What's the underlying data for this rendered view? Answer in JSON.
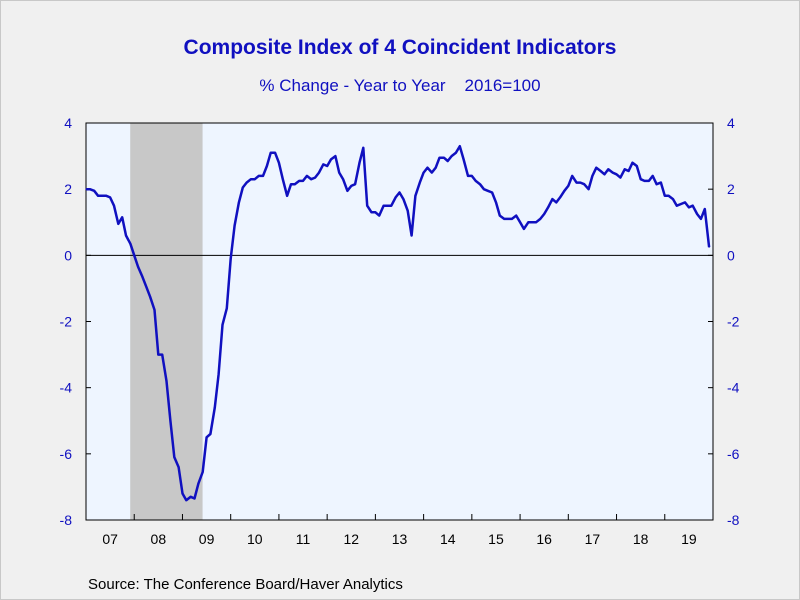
{
  "chart_data": {
    "type": "line",
    "title": "Composite Index of 4 Coincident Indicators",
    "subtitle": "% Change - Year to Year    2016=100",
    "source": "Source:  The Conference Board/Haver Analytics",
    "x_start_year": 2007,
    "x_end_year": 2020,
    "x_tick_labels": [
      "07",
      "08",
      "09",
      "10",
      "11",
      "12",
      "13",
      "14",
      "15",
      "16",
      "17",
      "18",
      "19"
    ],
    "ylim": [
      -8,
      4
    ],
    "y_ticks": [
      4,
      2,
      0,
      -2,
      -4,
      -6,
      -8
    ],
    "y_tick_labels": [
      "4",
      "2",
      "0",
      "-2",
      "-4",
      "-6",
      "-8"
    ],
    "zero_line": true,
    "shaded_periods": [
      {
        "start": 2007.917,
        "end": 2009.417
      }
    ],
    "colors": {
      "line": "#1010c0",
      "axis_text": "#1010c0",
      "plot_background": "#eef5ff",
      "recession_shade": "#c8c8c8",
      "page_background": "#f0f0f0"
    },
    "series": [
      {
        "values": [
          [
            2007.0,
            2.0
          ],
          [
            2007.08,
            2.0
          ],
          [
            2007.17,
            1.95
          ],
          [
            2007.25,
            1.8
          ],
          [
            2007.33,
            1.8
          ],
          [
            2007.42,
            1.8
          ],
          [
            2007.5,
            1.75
          ],
          [
            2007.58,
            1.5
          ],
          [
            2007.67,
            0.95
          ],
          [
            2007.75,
            1.15
          ],
          [
            2007.83,
            0.6
          ],
          [
            2007.92,
            0.35
          ],
          [
            2008.0,
            0.0
          ],
          [
            2008.08,
            -0.35
          ],
          [
            2008.17,
            -0.65
          ],
          [
            2008.25,
            -0.95
          ],
          [
            2008.33,
            -1.25
          ],
          [
            2008.42,
            -1.65
          ],
          [
            2008.5,
            -3.0
          ],
          [
            2008.58,
            -3.0
          ],
          [
            2008.67,
            -3.8
          ],
          [
            2008.75,
            -5.0
          ],
          [
            2008.83,
            -6.1
          ],
          [
            2008.92,
            -6.4
          ],
          [
            2009.0,
            -7.2
          ],
          [
            2009.08,
            -7.4
          ],
          [
            2009.17,
            -7.3
          ],
          [
            2009.25,
            -7.35
          ],
          [
            2009.33,
            -6.9
          ],
          [
            2009.42,
            -6.55
          ],
          [
            2009.5,
            -5.5
          ],
          [
            2009.58,
            -5.4
          ],
          [
            2009.67,
            -4.6
          ],
          [
            2009.75,
            -3.6
          ],
          [
            2009.83,
            -2.1
          ],
          [
            2009.92,
            -1.6
          ],
          [
            2010.0,
            -0.1
          ],
          [
            2010.08,
            0.9
          ],
          [
            2010.17,
            1.6
          ],
          [
            2010.25,
            2.05
          ],
          [
            2010.33,
            2.2
          ],
          [
            2010.42,
            2.3
          ],
          [
            2010.5,
            2.3
          ],
          [
            2010.58,
            2.4
          ],
          [
            2010.67,
            2.4
          ],
          [
            2010.75,
            2.7
          ],
          [
            2010.83,
            3.1
          ],
          [
            2010.92,
            3.1
          ],
          [
            2011.0,
            2.8
          ],
          [
            2011.08,
            2.3
          ],
          [
            2011.17,
            1.8
          ],
          [
            2011.25,
            2.15
          ],
          [
            2011.33,
            2.15
          ],
          [
            2011.42,
            2.25
          ],
          [
            2011.5,
            2.25
          ],
          [
            2011.58,
            2.4
          ],
          [
            2011.67,
            2.3
          ],
          [
            2011.75,
            2.35
          ],
          [
            2011.83,
            2.5
          ],
          [
            2011.92,
            2.75
          ],
          [
            2012.0,
            2.7
          ],
          [
            2012.08,
            2.9
          ],
          [
            2012.17,
            3.0
          ],
          [
            2012.25,
            2.5
          ],
          [
            2012.33,
            2.3
          ],
          [
            2012.42,
            1.95
          ],
          [
            2012.5,
            2.1
          ],
          [
            2012.58,
            2.15
          ],
          [
            2012.67,
            2.8
          ],
          [
            2012.75,
            3.25
          ],
          [
            2012.83,
            1.5
          ],
          [
            2012.92,
            1.3
          ],
          [
            2013.0,
            1.3
          ],
          [
            2013.08,
            1.2
          ],
          [
            2013.17,
            1.5
          ],
          [
            2013.25,
            1.5
          ],
          [
            2013.33,
            1.5
          ],
          [
            2013.42,
            1.75
          ],
          [
            2013.5,
            1.9
          ],
          [
            2013.58,
            1.7
          ],
          [
            2013.67,
            1.35
          ],
          [
            2013.75,
            0.6
          ],
          [
            2013.83,
            1.8
          ],
          [
            2013.92,
            2.2
          ],
          [
            2014.0,
            2.5
          ],
          [
            2014.08,
            2.65
          ],
          [
            2014.17,
            2.5
          ],
          [
            2014.25,
            2.65
          ],
          [
            2014.33,
            2.95
          ],
          [
            2014.42,
            2.95
          ],
          [
            2014.5,
            2.85
          ],
          [
            2014.58,
            3.0
          ],
          [
            2014.67,
            3.1
          ],
          [
            2014.75,
            3.3
          ],
          [
            2014.83,
            2.9
          ],
          [
            2014.92,
            2.4
          ],
          [
            2015.0,
            2.4
          ],
          [
            2015.08,
            2.25
          ],
          [
            2015.17,
            2.15
          ],
          [
            2015.25,
            2.0
          ],
          [
            2015.33,
            1.95
          ],
          [
            2015.42,
            1.9
          ],
          [
            2015.5,
            1.6
          ],
          [
            2015.58,
            1.2
          ],
          [
            2015.67,
            1.1
          ],
          [
            2015.75,
            1.1
          ],
          [
            2015.83,
            1.1
          ],
          [
            2015.92,
            1.2
          ],
          [
            2016.0,
            1.0
          ],
          [
            2016.08,
            0.8
          ],
          [
            2016.17,
            1.0
          ],
          [
            2016.25,
            1.0
          ],
          [
            2016.33,
            1.0
          ],
          [
            2016.42,
            1.1
          ],
          [
            2016.5,
            1.25
          ],
          [
            2016.58,
            1.45
          ],
          [
            2016.67,
            1.7
          ],
          [
            2016.75,
            1.6
          ],
          [
            2016.83,
            1.75
          ],
          [
            2016.92,
            1.95
          ],
          [
            2017.0,
            2.1
          ],
          [
            2017.08,
            2.4
          ],
          [
            2017.17,
            2.2
          ],
          [
            2017.25,
            2.2
          ],
          [
            2017.33,
            2.15
          ],
          [
            2017.42,
            2.0
          ],
          [
            2017.5,
            2.4
          ],
          [
            2017.58,
            2.65
          ],
          [
            2017.67,
            2.55
          ],
          [
            2017.75,
            2.45
          ],
          [
            2017.83,
            2.6
          ],
          [
            2017.92,
            2.5
          ],
          [
            2018.0,
            2.45
          ],
          [
            2018.08,
            2.35
          ],
          [
            2018.17,
            2.6
          ],
          [
            2018.25,
            2.55
          ],
          [
            2018.33,
            2.8
          ],
          [
            2018.42,
            2.7
          ],
          [
            2018.5,
            2.3
          ],
          [
            2018.58,
            2.25
          ],
          [
            2018.67,
            2.25
          ],
          [
            2018.75,
            2.4
          ],
          [
            2018.83,
            2.15
          ],
          [
            2018.92,
            2.2
          ],
          [
            2019.0,
            1.8
          ],
          [
            2019.08,
            1.8
          ],
          [
            2019.17,
            1.7
          ],
          [
            2019.25,
            1.5
          ],
          [
            2019.33,
            1.55
          ],
          [
            2019.42,
            1.6
          ],
          [
            2019.5,
            1.45
          ],
          [
            2019.58,
            1.5
          ],
          [
            2019.67,
            1.25
          ],
          [
            2019.75,
            1.1
          ],
          [
            2019.83,
            1.4
          ],
          [
            2019.92,
            0.25
          ]
        ]
      }
    ]
  }
}
